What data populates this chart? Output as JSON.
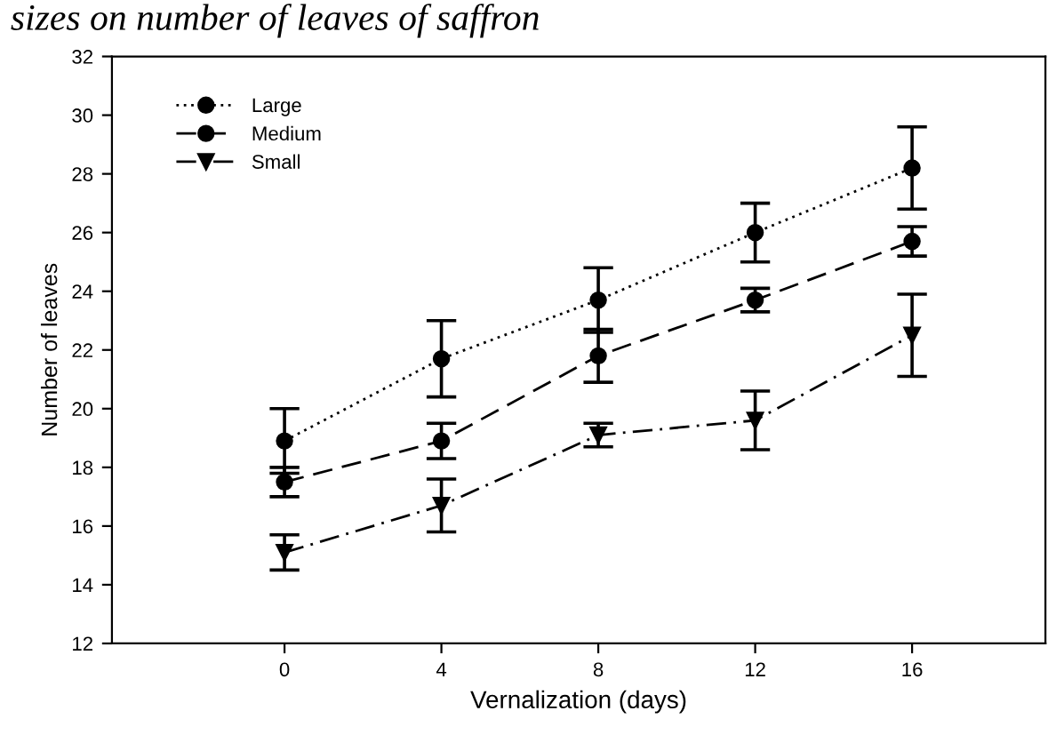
{
  "chart_data": {
    "type": "line",
    "title": "sizes on number of leaves of saffron",
    "xlabel": "Vernalization (days)",
    "ylabel": "Number of leaves",
    "x": [
      0,
      4,
      8,
      12,
      16
    ],
    "xlim": [
      -4.4,
      19.4
    ],
    "xticks": [
      0,
      4,
      8,
      12,
      16
    ],
    "ylim": [
      12,
      32
    ],
    "yticks": [
      12,
      14,
      16,
      18,
      20,
      22,
      24,
      26,
      28,
      30,
      32
    ],
    "legend": "top left",
    "grid": false,
    "series": [
      {
        "name": "Large",
        "color": "#000000",
        "marker": "circle",
        "line_style": "dotted",
        "values": [
          18.9,
          21.7,
          23.7,
          26.0,
          28.2
        ],
        "errors": [
          1.1,
          1.3,
          1.1,
          1.0,
          1.4
        ]
      },
      {
        "name": "Medium",
        "color": "#000000",
        "marker": "circle",
        "line_style": "dashed",
        "values": [
          17.5,
          18.9,
          21.8,
          23.7,
          25.7
        ],
        "errors": [
          0.5,
          0.6,
          0.9,
          0.4,
          0.5
        ]
      },
      {
        "name": "Small",
        "color": "#000000",
        "marker": "triangle",
        "line_style": "dashdot",
        "values": [
          15.1,
          16.7,
          19.1,
          19.6,
          22.5
        ],
        "errors": [
          0.6,
          0.9,
          0.4,
          1.0,
          1.4
        ]
      }
    ]
  }
}
